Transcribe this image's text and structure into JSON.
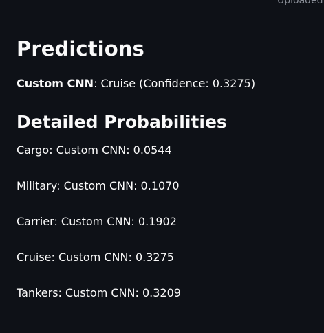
{
  "header": {
    "caption": "Uploaded"
  },
  "predictions": {
    "title": "Predictions",
    "model_name": "Custom CNN",
    "separator": ": ",
    "result_text": "Cruise (Confidence: 0.3275)"
  },
  "detailed": {
    "title": "Detailed Probabilities",
    "items": [
      "Cargo: Custom CNN: 0.0544",
      "Military: Custom CNN: 0.1070",
      "Carrier: Custom CNN: 0.1902",
      "Cruise: Custom CNN: 0.3275",
      "Tankers: Custom CNN: 0.3209"
    ]
  }
}
